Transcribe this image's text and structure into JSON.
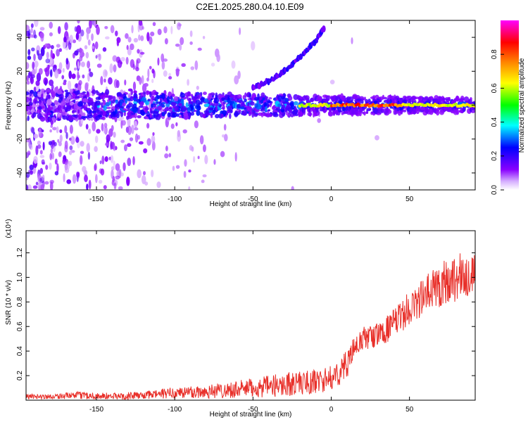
{
  "title": "C2E1.2025.280.04.10.E09",
  "chart_data": [
    {
      "type": "heatmap",
      "title": "C2E1.2025.280.04.10.E09",
      "xlabel": "Height of straight line (km)",
      "ylabel": "Frequency (Hz)",
      "xlim": [
        -195,
        92
      ],
      "ylim": [
        -50,
        50
      ],
      "xticks": [
        -150,
        -100,
        -50,
        0,
        50
      ],
      "yticks": [
        -40,
        -20,
        0,
        20,
        40
      ],
      "xtick_labels": [
        "-150",
        "-100",
        "-50",
        "0",
        "50"
      ],
      "ytick_labels": [
        "-40",
        "-20",
        "0",
        "20",
        "40"
      ],
      "colorbar": {
        "label": "Normalized spectral amplitude",
        "range": [
          0,
          1
        ],
        "ticks": [
          0.0,
          0.2,
          0.4,
          0.6,
          0.8
        ],
        "tick_labels": [
          "0.0",
          "0.2",
          "0.4",
          "0.6",
          "0.8"
        ],
        "colormap": [
          "#ffffff",
          "#8800ff",
          "#0000ff",
          "#00ffff",
          "#00ff00",
          "#ffff00",
          "#ff8800",
          "#ff0000",
          "#ff00ff"
        ]
      },
      "features": [
        {
          "name": "main band",
          "x": [
            -195,
            92
          ],
          "y_center": 0,
          "y_halfwidth": [
            9,
            4
          ]
        },
        {
          "name": "strong carrier",
          "x": [
            -20,
            92
          ],
          "y_center": 0,
          "amplitude": [
            0.4,
            0.9
          ]
        },
        {
          "name": "rising trace",
          "points": [
            [
              -50,
              10
            ],
            [
              -40,
              14
            ],
            [
              -30,
              20
            ],
            [
              -20,
              28
            ],
            [
              -10,
              38
            ],
            [
              -5,
              45
            ]
          ]
        }
      ],
      "grid": false
    },
    {
      "type": "line",
      "xlabel": "Height of straight line (km)",
      "ylabel": "SNR (10 * v/v)",
      "y_multiplier": "(x10⁴)",
      "xlim": [
        -195,
        92
      ],
      "ylim": [
        0,
        1.38
      ],
      "xticks": [
        -150,
        -100,
        -50,
        0,
        50
      ],
      "yticks": [
        0.2,
        0.4,
        0.6,
        0.8,
        1.0,
        1.2
      ],
      "xtick_labels": [
        "-150",
        "-100",
        "-50",
        "0",
        "50"
      ],
      "ytick_labels": [
        "0.2",
        "0.4",
        "0.6",
        "0.8",
        "1.0",
        "1.2"
      ],
      "series": [
        {
          "color": "#e8302a",
          "x": [
            -195,
            -180,
            -160,
            -140,
            -120,
            -100,
            -80,
            -60,
            -50,
            -40,
            -30,
            -20,
            -10,
            0,
            5,
            10,
            15,
            20,
            30,
            40,
            50,
            60,
            70,
            80,
            92
          ],
          "y": [
            0.03,
            0.03,
            0.04,
            0.03,
            0.04,
            0.06,
            0.07,
            0.09,
            0.1,
            0.11,
            0.13,
            0.14,
            0.15,
            0.18,
            0.22,
            0.3,
            0.42,
            0.5,
            0.53,
            0.62,
            0.75,
            0.85,
            0.95,
            1.0,
            1.02
          ],
          "noise_amplitude": [
            0.02,
            0.02,
            0.03,
            0.03,
            0.03,
            0.05,
            0.06,
            0.07,
            0.08,
            0.09,
            0.1,
            0.1,
            0.1,
            0.1,
            0.1,
            0.12,
            0.1,
            0.1,
            0.1,
            0.12,
            0.14,
            0.16,
            0.2,
            0.2,
            0.18
          ]
        }
      ],
      "grid": false
    }
  ]
}
